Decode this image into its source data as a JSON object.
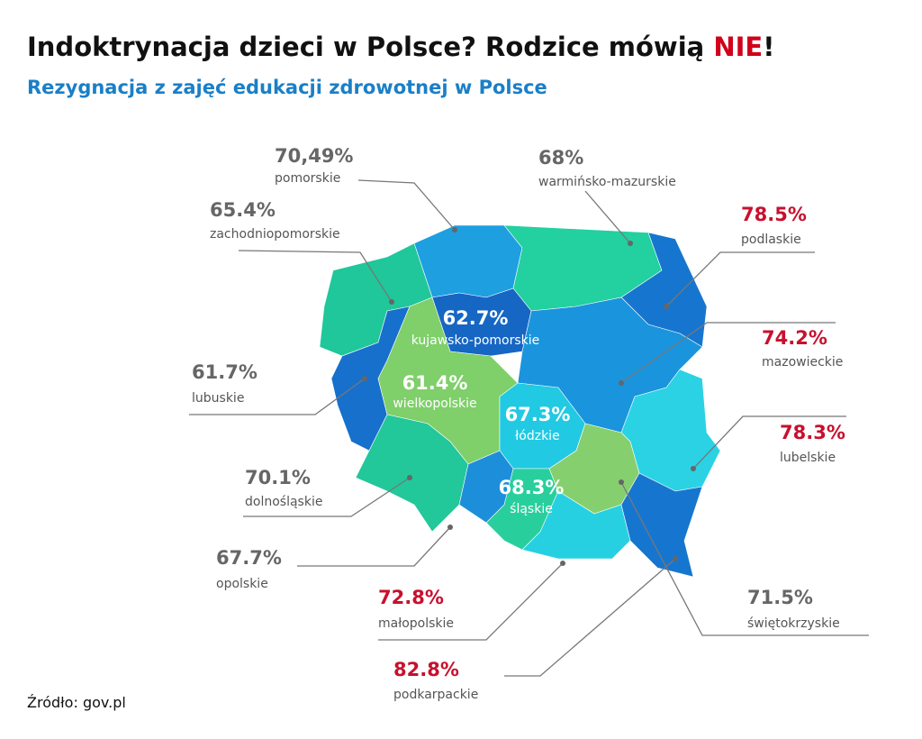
{
  "title": {
    "parts": [
      "Indoktrynacja dzieci w Polsce? Rodzice mówią ",
      "NIE",
      "!"
    ],
    "colors": [
      "#111111",
      "#d0021b",
      "#111111"
    ]
  },
  "subtitle": "Rezygnacja z zajęć edukacji zdrowotnej w Polsce",
  "regions": [
    {
      "name": "pomorskie",
      "value": "70,49%",
      "fill": "#1d9fe0",
      "label_color": "#666666"
    },
    {
      "name": "zachodniopomorskie",
      "value": "65.4%",
      "fill": "#1fc79a",
      "label_color": "#666666"
    },
    {
      "name": "warmińsko-mazurskie",
      "value": "68%",
      "fill": "#22d0a0",
      "label_color": "#666666"
    },
    {
      "name": "podlaskie",
      "value": "78.5%",
      "fill": "#1676cf",
      "label_color": "#c8102e"
    },
    {
      "name": "kujawsko-pomorskie",
      "value": "62.7%",
      "fill": "#1666c4",
      "label_color": "#ffffff"
    },
    {
      "name": "mazowieckie",
      "value": "74.2%",
      "fill": "#1a94dd",
      "label_color": "#c8102e"
    },
    {
      "name": "lubuskie",
      "value": "61.7%",
      "fill": "#1670cc",
      "label_color": "#666666"
    },
    {
      "name": "wielkopolskie",
      "value": "61.4%",
      "fill": "#7fcf6a",
      "label_color": "#ffffff"
    },
    {
      "name": "łódzkie",
      "value": "67.3%",
      "fill": "#22c9e2",
      "label_color": "#ffffff"
    },
    {
      "name": "lubelskie",
      "value": "78.3%",
      "fill": "#2ad2e4",
      "label_color": "#c8102e"
    },
    {
      "name": "dolnośląskie",
      "value": "70.1%",
      "fill": "#22c79a",
      "label_color": "#666666"
    },
    {
      "name": "śląskie",
      "value": "68.3%",
      "fill": "#28cf9c",
      "label_color": "#ffffff"
    },
    {
      "name": "opolskie",
      "value": "67.7%",
      "fill": "#1d8fda",
      "label_color": "#666666"
    },
    {
      "name": "świętokrzyskie",
      "value": "71.5%",
      "fill": "#86cf6e",
      "label_color": "#666666"
    },
    {
      "name": "małopolskie",
      "value": "72.8%",
      "fill": "#26d0e0",
      "label_color": "#c8102e"
    },
    {
      "name": "podkarpackie",
      "value": "82.8%",
      "fill": "#1676cf",
      "label_color": "#c8102e"
    }
  ],
  "source": "Źródło: gov.pl"
}
